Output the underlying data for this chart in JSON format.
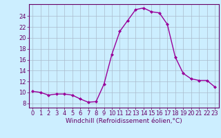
{
  "x": [
    0,
    1,
    2,
    3,
    4,
    5,
    6,
    7,
    8,
    9,
    10,
    11,
    12,
    13,
    14,
    15,
    16,
    17,
    18,
    19,
    20,
    21,
    22,
    23
  ],
  "y": [
    10.2,
    10.0,
    9.5,
    9.7,
    9.7,
    9.5,
    8.8,
    8.2,
    8.3,
    11.5,
    17.0,
    21.2,
    23.2,
    25.2,
    25.5,
    24.8,
    24.6,
    22.5,
    16.5,
    13.5,
    12.5,
    12.2,
    12.2,
    11.0
  ],
  "line_color": "#990099",
  "marker": "D",
  "marker_size": 2.0,
  "bg_color": "#cceeff",
  "grid_color": "#aabbcc",
  "xlabel": "Windchill (Refroidissement éolien,°C)",
  "xlabel_color": "#660066",
  "xlabel_fontsize": 6.5,
  "ylabel_ticks": [
    8,
    10,
    12,
    14,
    16,
    18,
    20,
    22,
    24
  ],
  "xtick_labels": [
    "0",
    "1",
    "2",
    "3",
    "4",
    "5",
    "6",
    "7",
    "8",
    "9",
    "10",
    "11",
    "12",
    "13",
    "14",
    "15",
    "16",
    "17",
    "18",
    "19",
    "20",
    "21",
    "22",
    "23"
  ],
  "xlim": [
    -0.5,
    23.5
  ],
  "ylim": [
    7.2,
    26.2
  ],
  "tick_color": "#660066",
  "tick_fontsize": 6.0,
  "spine_color": "#660066",
  "line_width": 1.0
}
